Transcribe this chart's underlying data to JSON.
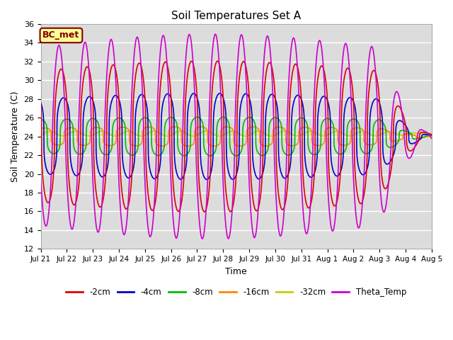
{
  "title": "Soil Temperatures Set A",
  "xlabel": "Time",
  "ylabel": "Soil Temperature (C)",
  "ylim": [
    12,
    36
  ],
  "yticks": [
    12,
    14,
    16,
    18,
    20,
    22,
    24,
    26,
    28,
    30,
    32,
    34,
    36
  ],
  "bg_color": "#dcdcdc",
  "fig_color": "#ffffff",
  "grid_color": "#ffffff",
  "label_box_text": "BC_met",
  "label_box_facecolor": "#ffff99",
  "label_box_edgecolor": "#800000",
  "lines": {
    "-2cm": {
      "color": "#dd0000",
      "lw": 1.2
    },
    "-4cm": {
      "color": "#0000cc",
      "lw": 1.2
    },
    "-8cm": {
      "color": "#00bb00",
      "lw": 1.2
    },
    "-16cm": {
      "color": "#ff8800",
      "lw": 1.2
    },
    "-32cm": {
      "color": "#cccc00",
      "lw": 1.2
    },
    "Theta_Temp": {
      "color": "#cc00cc",
      "lw": 1.2
    }
  },
  "legend_order": [
    "-2cm",
    "-4cm",
    "-8cm",
    "-16cm",
    "-32cm",
    "Theta_Temp"
  ],
  "xtick_labels": [
    "Jul 21",
    "Jul 22",
    "Jul 23",
    "Jul 24",
    "Jul 25",
    "Jul 26",
    "Jul 27",
    "Jul 28",
    "Jul 29",
    "Jul 30",
    "Jul 31",
    "Aug 1",
    "Aug 2",
    "Aug 3",
    "Aug 4",
    "Aug 5"
  ],
  "n_days": 15,
  "pts_per_day": 144
}
